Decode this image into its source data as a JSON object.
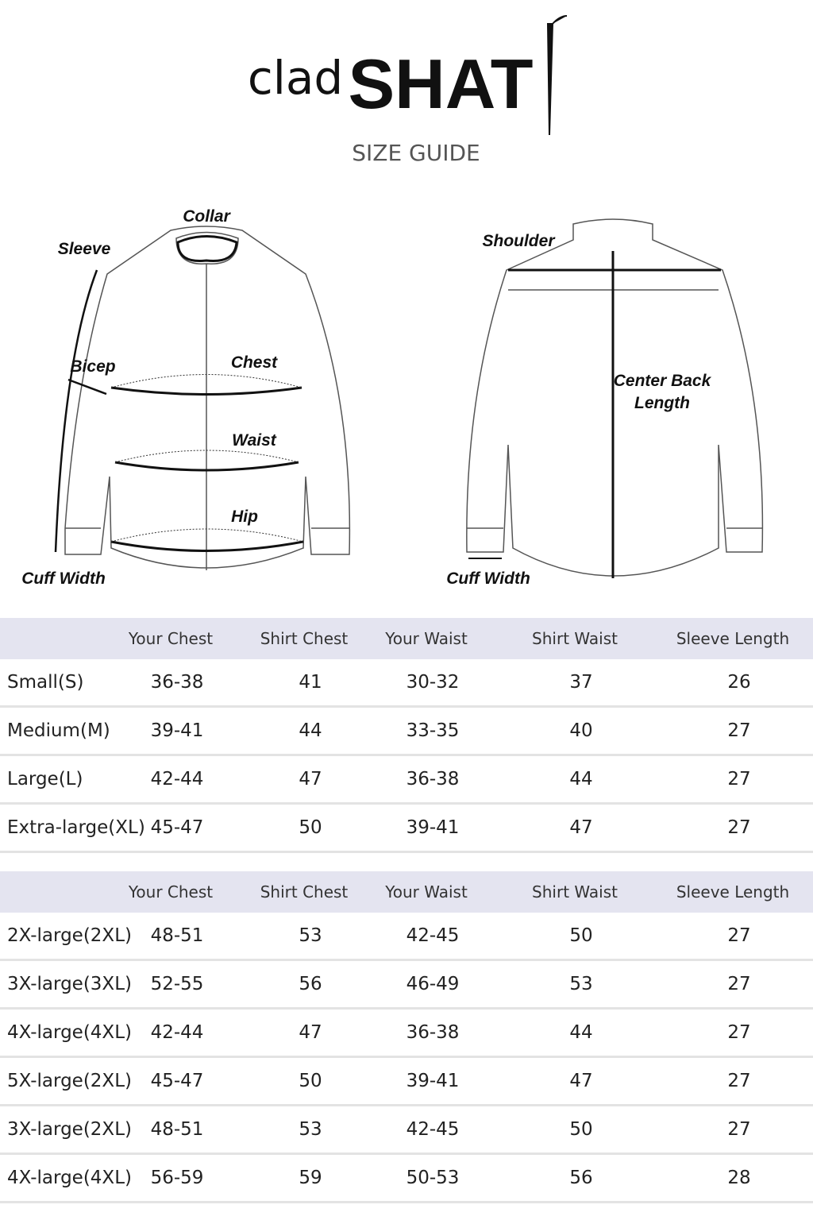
{
  "header": {
    "logo_light": "clad",
    "logo_bold": "SHAT",
    "subtitle": "SIZE GUIDE"
  },
  "diagram": {
    "front": {
      "collar": "Collar",
      "sleeve": "Sleeve",
      "bicep": "Bicep",
      "chest": "Chest",
      "waist": "Waist",
      "hip": "Hip",
      "cuff_width": "Cuff Width"
    },
    "back": {
      "shoulder": "Shoulder",
      "center_back_length": [
        "Center Back",
        "Length"
      ],
      "cuff_width": "Cuff Width"
    }
  },
  "tables": [
    {
      "columns": [
        "Your Chest",
        "Shirt Chest",
        "Your Waist",
        "Shirt Waist",
        "Sleeve Length"
      ],
      "rows": [
        [
          "Small(S)",
          "36-38",
          "41",
          "30-32",
          "37",
          "26"
        ],
        [
          "Medium(M)",
          "39-41",
          "44",
          "33-35",
          "40",
          "27"
        ],
        [
          "Large(L)",
          "42-44",
          "47",
          "36-38",
          "44",
          "27"
        ],
        [
          "Extra-large(XL)",
          "45-47",
          "50",
          "39-41",
          "47",
          "27"
        ]
      ]
    },
    {
      "columns": [
        "Your Chest",
        "Shirt Chest",
        "Your Waist",
        "Shirt Waist",
        "Sleeve Length"
      ],
      "rows": [
        [
          "2X-large(2XL)",
          "48-51",
          "53",
          "42-45",
          "50",
          "27"
        ],
        [
          "3X-large(3XL)",
          "52-55",
          "56",
          "46-49",
          "53",
          "27"
        ],
        [
          "4X-large(4XL)",
          "42-44",
          "47",
          "36-38",
          "44",
          "27"
        ],
        [
          "5X-large(2XL)",
          "45-47",
          "50",
          "39-41",
          "47",
          "27"
        ],
        [
          "3X-large(2XL)",
          "48-51",
          "53",
          "42-45",
          "50",
          "27"
        ],
        [
          "4X-large(4XL)",
          "56-59",
          "59",
          "50-53",
          "56",
          "28"
        ]
      ]
    }
  ]
}
